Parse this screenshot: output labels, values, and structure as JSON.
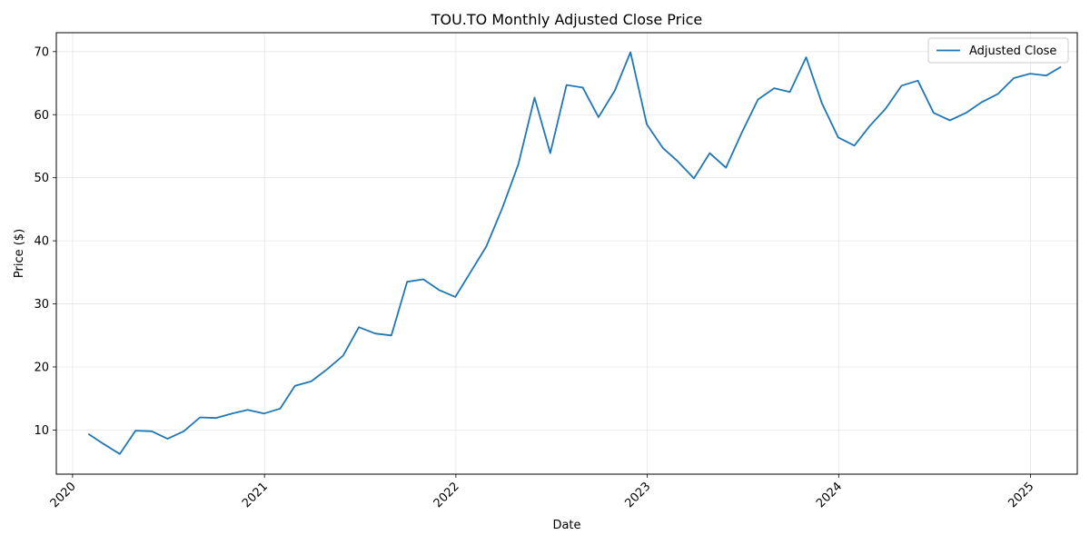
{
  "chart_data": {
    "type": "line",
    "title": "TOU.TO Monthly Adjusted Close Price",
    "xlabel": "Date",
    "ylabel": "Price ($)",
    "ylim": [
      3,
      73
    ],
    "xlim": [
      "2019-12-01",
      "2025-03-31"
    ],
    "y_ticks": [
      10,
      20,
      30,
      40,
      50,
      60,
      70
    ],
    "x_ticks": [
      "2020",
      "2021",
      "2022",
      "2023",
      "2024",
      "2025"
    ],
    "grid": true,
    "legend_position": "top-right",
    "series": [
      {
        "name": "Adjusted Close",
        "color": "#1f77b4",
        "points": [
          [
            "2020-01-31",
            9.4
          ],
          [
            "2020-02-29",
            7.8
          ],
          [
            "2020-03-31",
            6.2
          ],
          [
            "2020-04-30",
            9.9
          ],
          [
            "2020-05-31",
            9.8
          ],
          [
            "2020-06-30",
            8.6
          ],
          [
            "2020-07-31",
            9.8
          ],
          [
            "2020-08-31",
            12.0
          ],
          [
            "2020-09-30",
            11.9
          ],
          [
            "2020-10-31",
            12.6
          ],
          [
            "2020-11-30",
            13.2
          ],
          [
            "2020-12-31",
            12.6
          ],
          [
            "2021-01-31",
            13.4
          ],
          [
            "2021-02-28",
            17.0
          ],
          [
            "2021-03-31",
            17.7
          ],
          [
            "2021-04-30",
            19.6
          ],
          [
            "2021-05-31",
            21.8
          ],
          [
            "2021-06-30",
            26.3
          ],
          [
            "2021-07-31",
            25.3
          ],
          [
            "2021-08-31",
            25.0
          ],
          [
            "2021-09-30",
            33.5
          ],
          [
            "2021-10-31",
            33.9
          ],
          [
            "2021-11-30",
            32.2
          ],
          [
            "2021-12-31",
            31.1
          ],
          [
            "2022-01-31",
            35.3
          ],
          [
            "2022-02-28",
            39.1
          ],
          [
            "2022-03-31",
            45.3
          ],
          [
            "2022-04-30",
            52.1
          ],
          [
            "2022-05-31",
            62.7
          ],
          [
            "2022-06-30",
            53.9
          ],
          [
            "2022-07-31",
            64.7
          ],
          [
            "2022-08-31",
            64.3
          ],
          [
            "2022-09-30",
            59.6
          ],
          [
            "2022-10-31",
            63.8
          ],
          [
            "2022-11-30",
            69.9
          ],
          [
            "2022-12-31",
            58.5
          ],
          [
            "2023-01-31",
            54.7
          ],
          [
            "2023-02-28",
            52.6
          ],
          [
            "2023-03-31",
            49.9
          ],
          [
            "2023-04-30",
            53.9
          ],
          [
            "2023-05-31",
            51.6
          ],
          [
            "2023-06-30",
            57.1
          ],
          [
            "2023-07-31",
            62.4
          ],
          [
            "2023-08-31",
            64.2
          ],
          [
            "2023-09-30",
            63.6
          ],
          [
            "2023-10-31",
            69.1
          ],
          [
            "2023-11-30",
            61.8
          ],
          [
            "2023-12-31",
            56.4
          ],
          [
            "2024-01-31",
            55.1
          ],
          [
            "2024-02-29",
            58.2
          ],
          [
            "2024-03-31",
            61.0
          ],
          [
            "2024-04-30",
            64.6
          ],
          [
            "2024-05-31",
            65.4
          ],
          [
            "2024-06-30",
            60.3
          ],
          [
            "2024-07-31",
            59.1
          ],
          [
            "2024-08-31",
            60.3
          ],
          [
            "2024-09-30",
            62.0
          ],
          [
            "2024-10-31",
            63.3
          ],
          [
            "2024-11-30",
            65.8
          ],
          [
            "2024-12-31",
            66.5
          ],
          [
            "2025-01-31",
            66.2
          ],
          [
            "2025-02-28",
            67.6
          ]
        ]
      }
    ]
  }
}
